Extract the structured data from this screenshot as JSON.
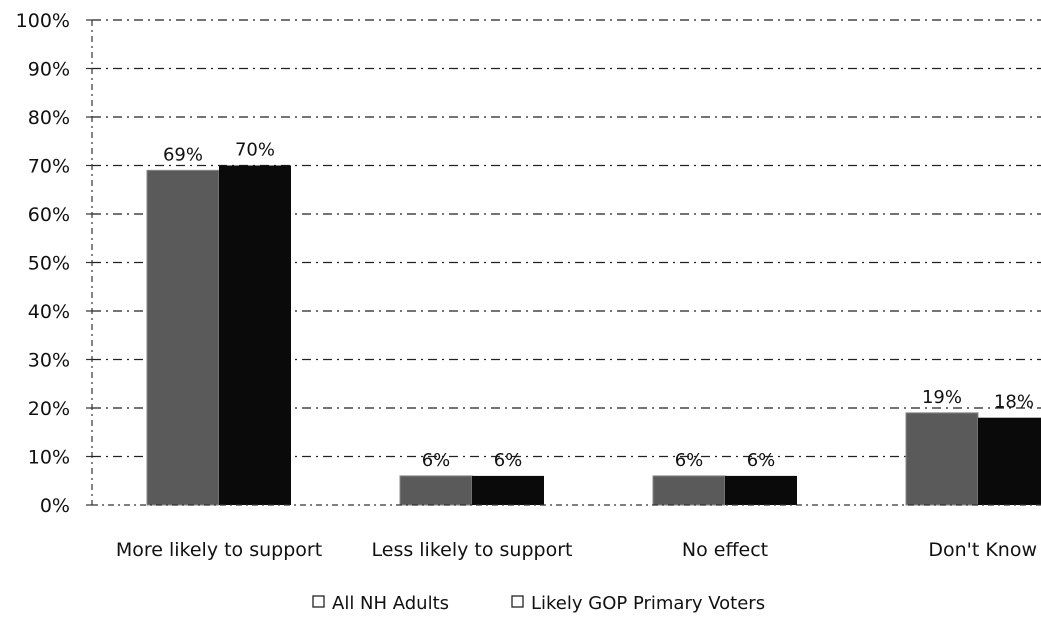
{
  "chart_data": {
    "type": "bar",
    "categories": [
      "More likely to support",
      "Less likely to support",
      "No effect",
      "Don't Know"
    ],
    "series": [
      {
        "name": "All NH Adults",
        "values": [
          69,
          6,
          6,
          19
        ],
        "color": "#5a5a5a"
      },
      {
        "name": "Likely GOP Primary Voters",
        "values": [
          70,
          6,
          6,
          18
        ],
        "color": "#0a0a0a"
      }
    ],
    "data_labels": [
      [
        "69%",
        "6%",
        "6%",
        "19%"
      ],
      [
        "70%",
        "6%",
        "6%",
        "18%"
      ]
    ],
    "yticks": [
      "0%",
      "10%",
      "20%",
      "30%",
      "40%",
      "50%",
      "60%",
      "70%",
      "80%",
      "90%",
      "100%"
    ],
    "ylim": [
      0,
      100
    ],
    "grid": true,
    "legend": {
      "position": "bottom",
      "entries": [
        "All NH Adults",
        "Likely GOP Primary Voters"
      ]
    },
    "title": "",
    "xlabel": "",
    "ylabel": ""
  }
}
